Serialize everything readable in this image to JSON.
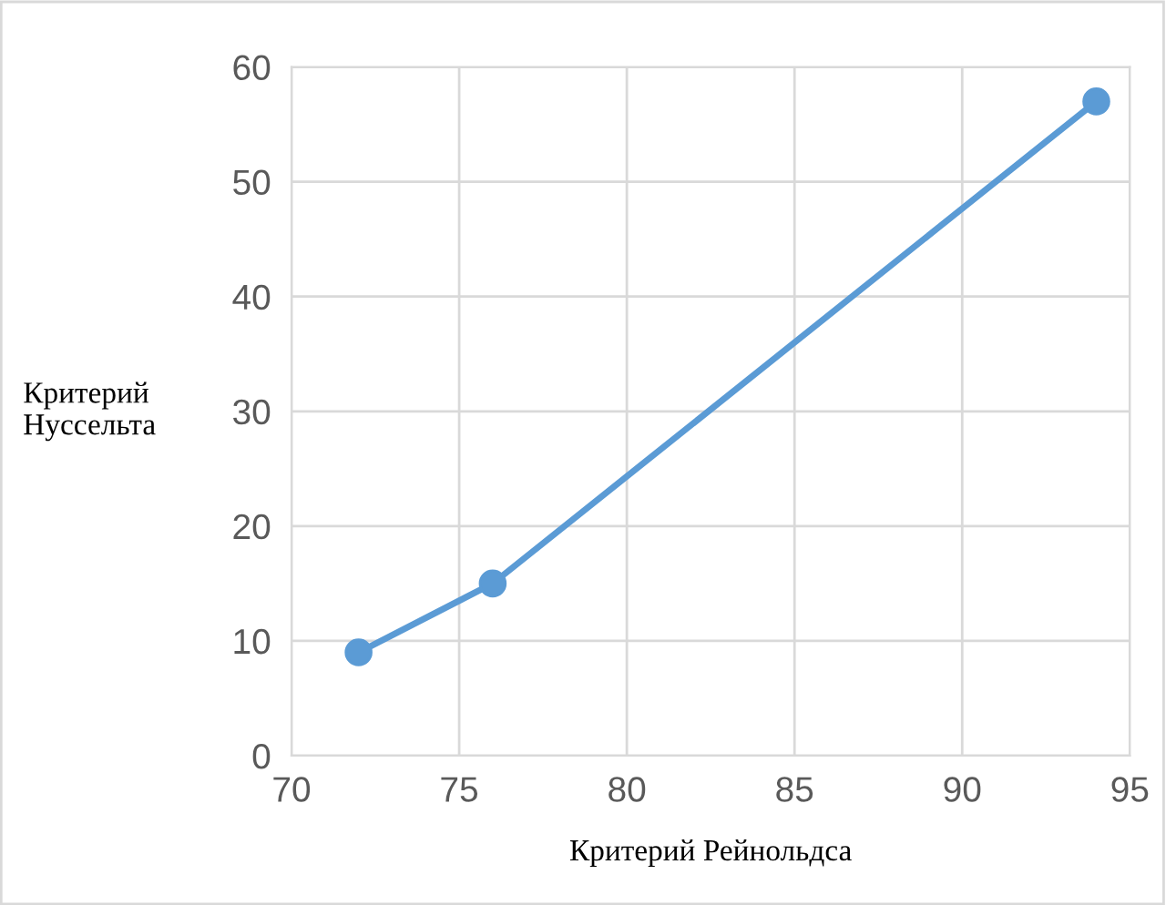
{
  "chart_data": {
    "type": "line",
    "xlabel": "Критерий Рейнольдса",
    "ylabel": "Критерий\nНуссельта",
    "x": [
      72,
      76,
      94
    ],
    "series": [
      {
        "color": "#5b9bd5",
        "values": [
          9,
          15,
          57
        ]
      }
    ],
    "xlim": [
      70,
      95
    ],
    "xticks": [
      70,
      75,
      80,
      85,
      90,
      95
    ],
    "ylim": [
      0,
      60
    ],
    "yticks": [
      0,
      10,
      20,
      30,
      40,
      50,
      60
    ],
    "grid": true,
    "marker": "circle",
    "line_style": "solid"
  }
}
